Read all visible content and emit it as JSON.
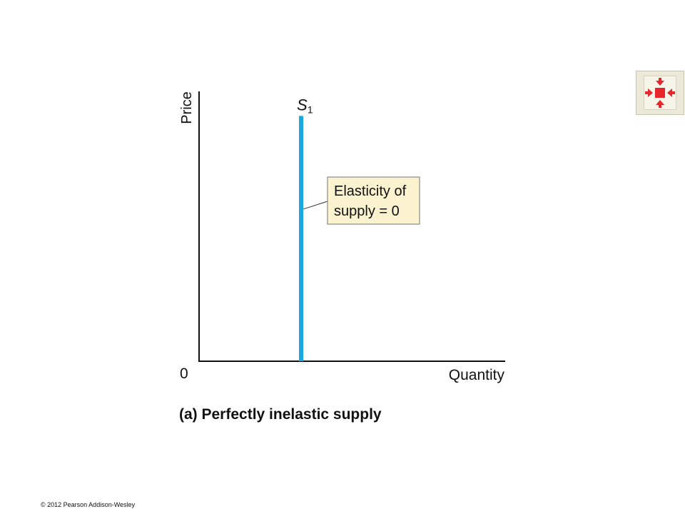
{
  "chart_data": {
    "type": "line",
    "title": "(a) Perfectly inelastic supply",
    "xlabel": "Quantity",
    "ylabel": "Price",
    "origin_label": "0",
    "grid": false,
    "series": [
      {
        "name_main": "S",
        "name_sub": "1",
        "color": "#1aa8e0",
        "points": [
          {
            "x": 5,
            "y": 0
          },
          {
            "x": 5,
            "y": 10
          }
        ]
      }
    ],
    "annotation": {
      "lines": [
        "Elasticity of",
        "supply = 0"
      ],
      "anchor": {
        "x": 5,
        "y": 6.2
      },
      "fill": "#fbf2cf",
      "border": "#8a8a8a"
    },
    "xlim": [
      0,
      15
    ],
    "ylim": [
      0,
      11
    ]
  },
  "nav": {
    "icon": "fullscreen-arrows-icon",
    "icon_color": "#e8252b"
  },
  "footer": {
    "copyright": "© 2012 Pearson Addison-Wesley"
  }
}
